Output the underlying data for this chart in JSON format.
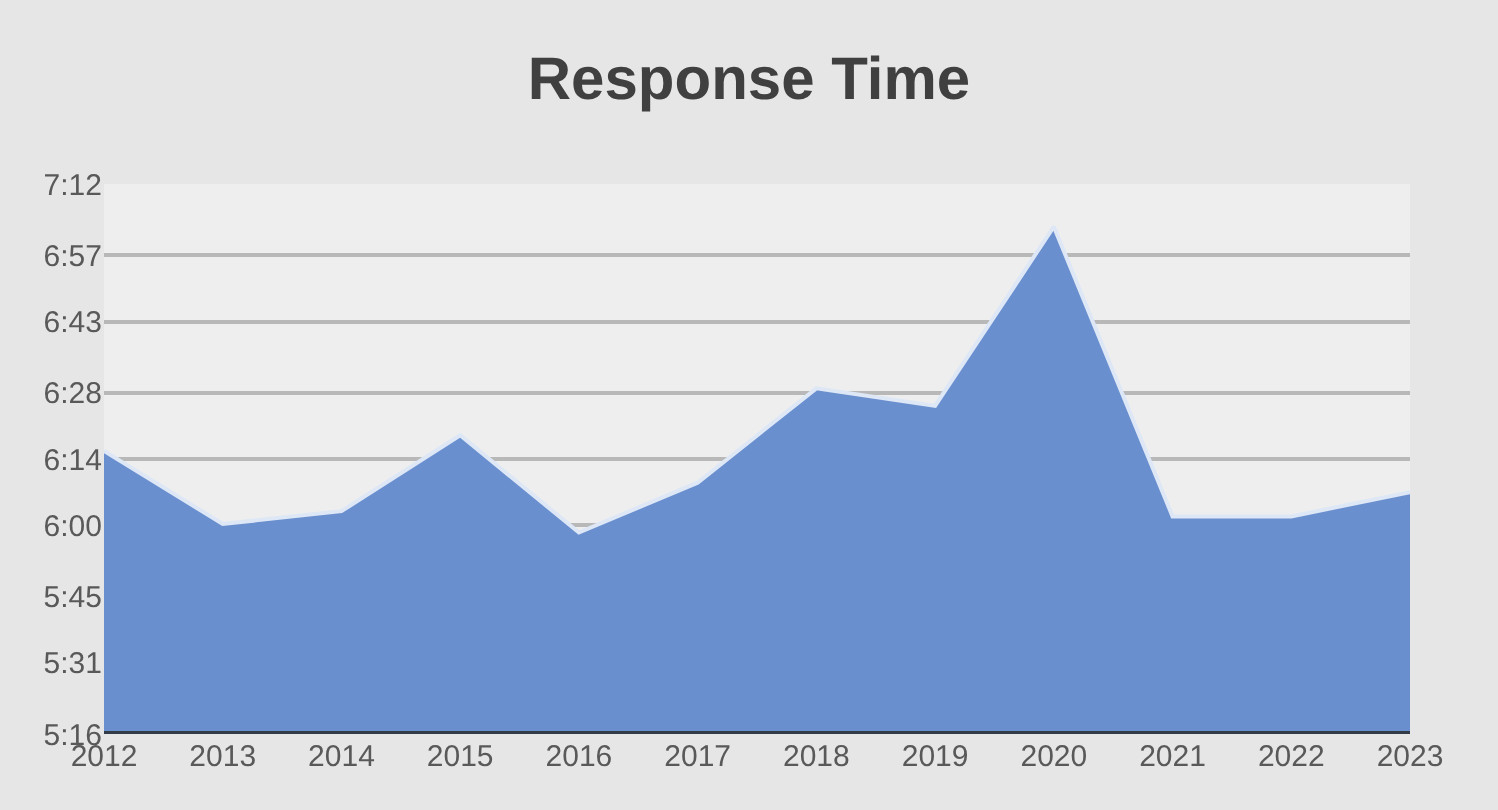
{
  "chart_data": {
    "type": "area",
    "title": "Response Time",
    "categories": [
      "2012",
      "2013",
      "2014",
      "2015",
      "2016",
      "2017",
      "2018",
      "2019",
      "2020",
      "2021",
      "2022",
      "2023"
    ],
    "series": [
      {
        "color": "#6a8fcf",
        "values": [
          375.7,
          360.3,
          363.0,
          379.0,
          358.5,
          369.0,
          388.9,
          385.2,
          423.0,
          361.9,
          361.9,
          367.0
        ]
      }
    ],
    "ylim": [
      316,
      432
    ],
    "yticks": [
      {
        "value": 316,
        "label": "5:16"
      },
      {
        "value": 331,
        "label": "5:31"
      },
      {
        "value": 345,
        "label": "5:45"
      },
      {
        "value": 360,
        "label": "6:00"
      },
      {
        "value": 374,
        "label": "6:14"
      },
      {
        "value": 388,
        "label": "6:28"
      },
      {
        "value": 403,
        "label": "6:43"
      },
      {
        "value": 417,
        "label": "6:57"
      },
      {
        "value": 432,
        "label": "7:12"
      }
    ],
    "grid": "y"
  }
}
